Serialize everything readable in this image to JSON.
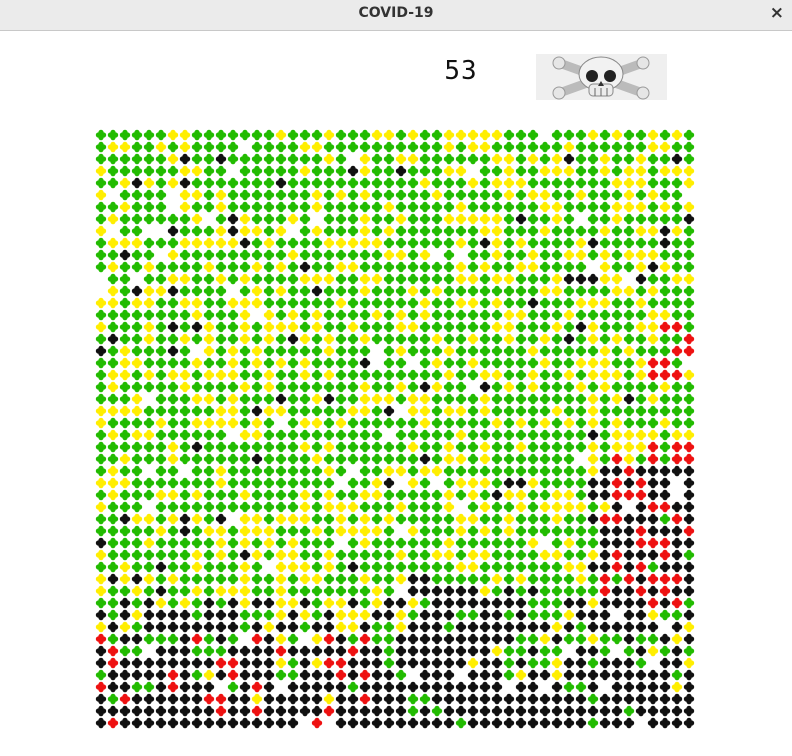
{
  "window": {
    "title": "COVID-19",
    "close": "×"
  },
  "header": {
    "count": "53"
  }
}
